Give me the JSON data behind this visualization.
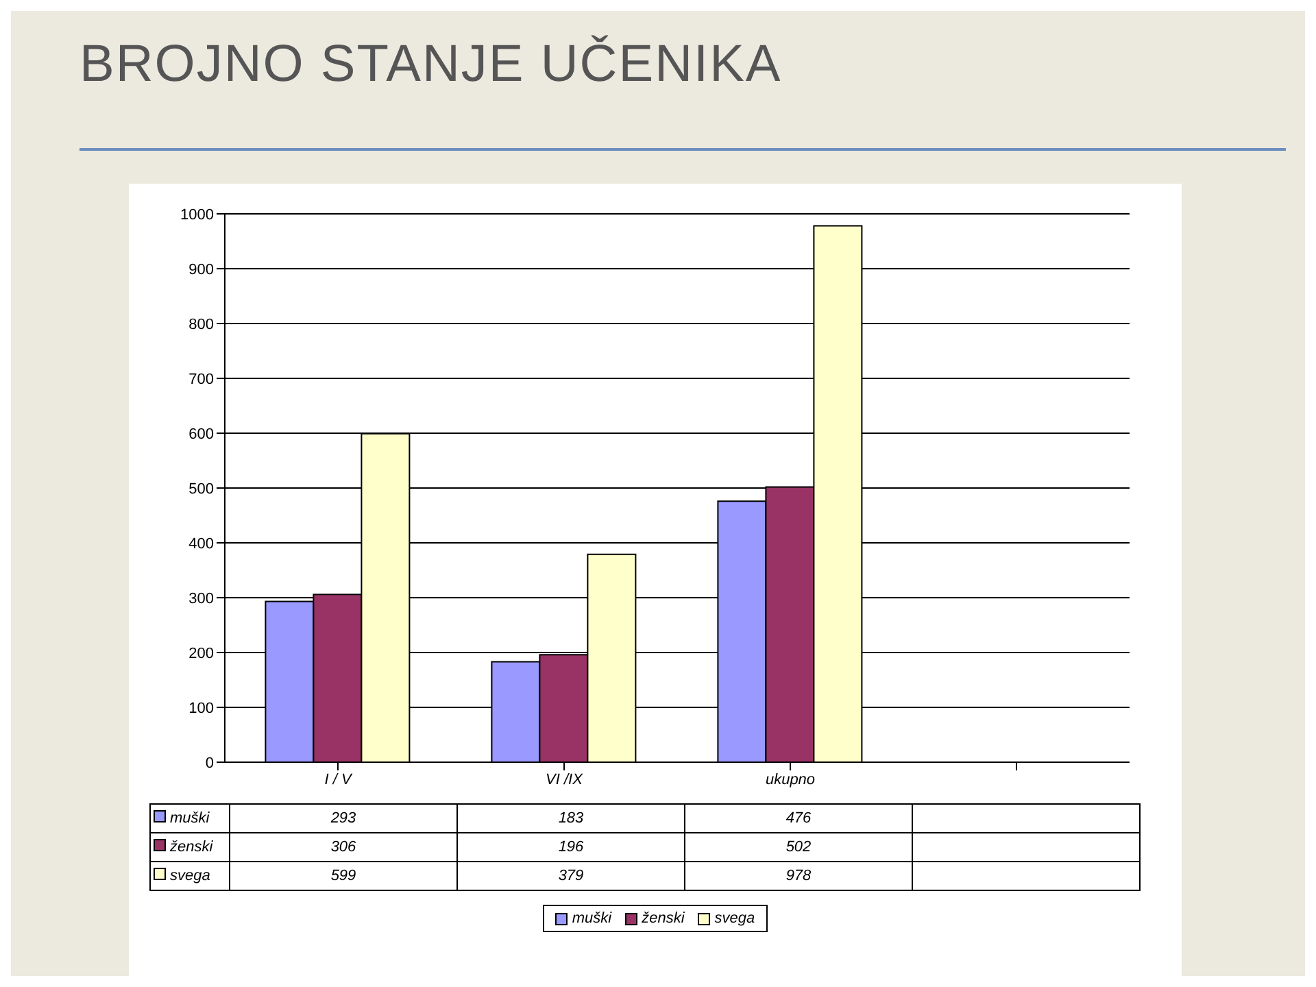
{
  "chart_data": {
    "type": "bar",
    "title": "BROJNO STANJE UČENIKA",
    "categories": [
      "I / V",
      "VI /IX",
      "ukupno",
      null
    ],
    "series": [
      {
        "name": "muški",
        "color": "#9999ff",
        "values": [
          293,
          183,
          476,
          null
        ]
      },
      {
        "name": "ženski",
        "color": "#993366",
        "values": [
          306,
          196,
          502,
          null
        ]
      },
      {
        "name": "svega",
        "color": "#ffffcc",
        "values": [
          599,
          379,
          978,
          null
        ]
      }
    ],
    "ylim": [
      0,
      1000
    ],
    "yticks": [
      0,
      100,
      200,
      300,
      400,
      500,
      600,
      700,
      800,
      900,
      1000
    ],
    "grid": "y",
    "legend": "bottom",
    "data_labels": true
  }
}
